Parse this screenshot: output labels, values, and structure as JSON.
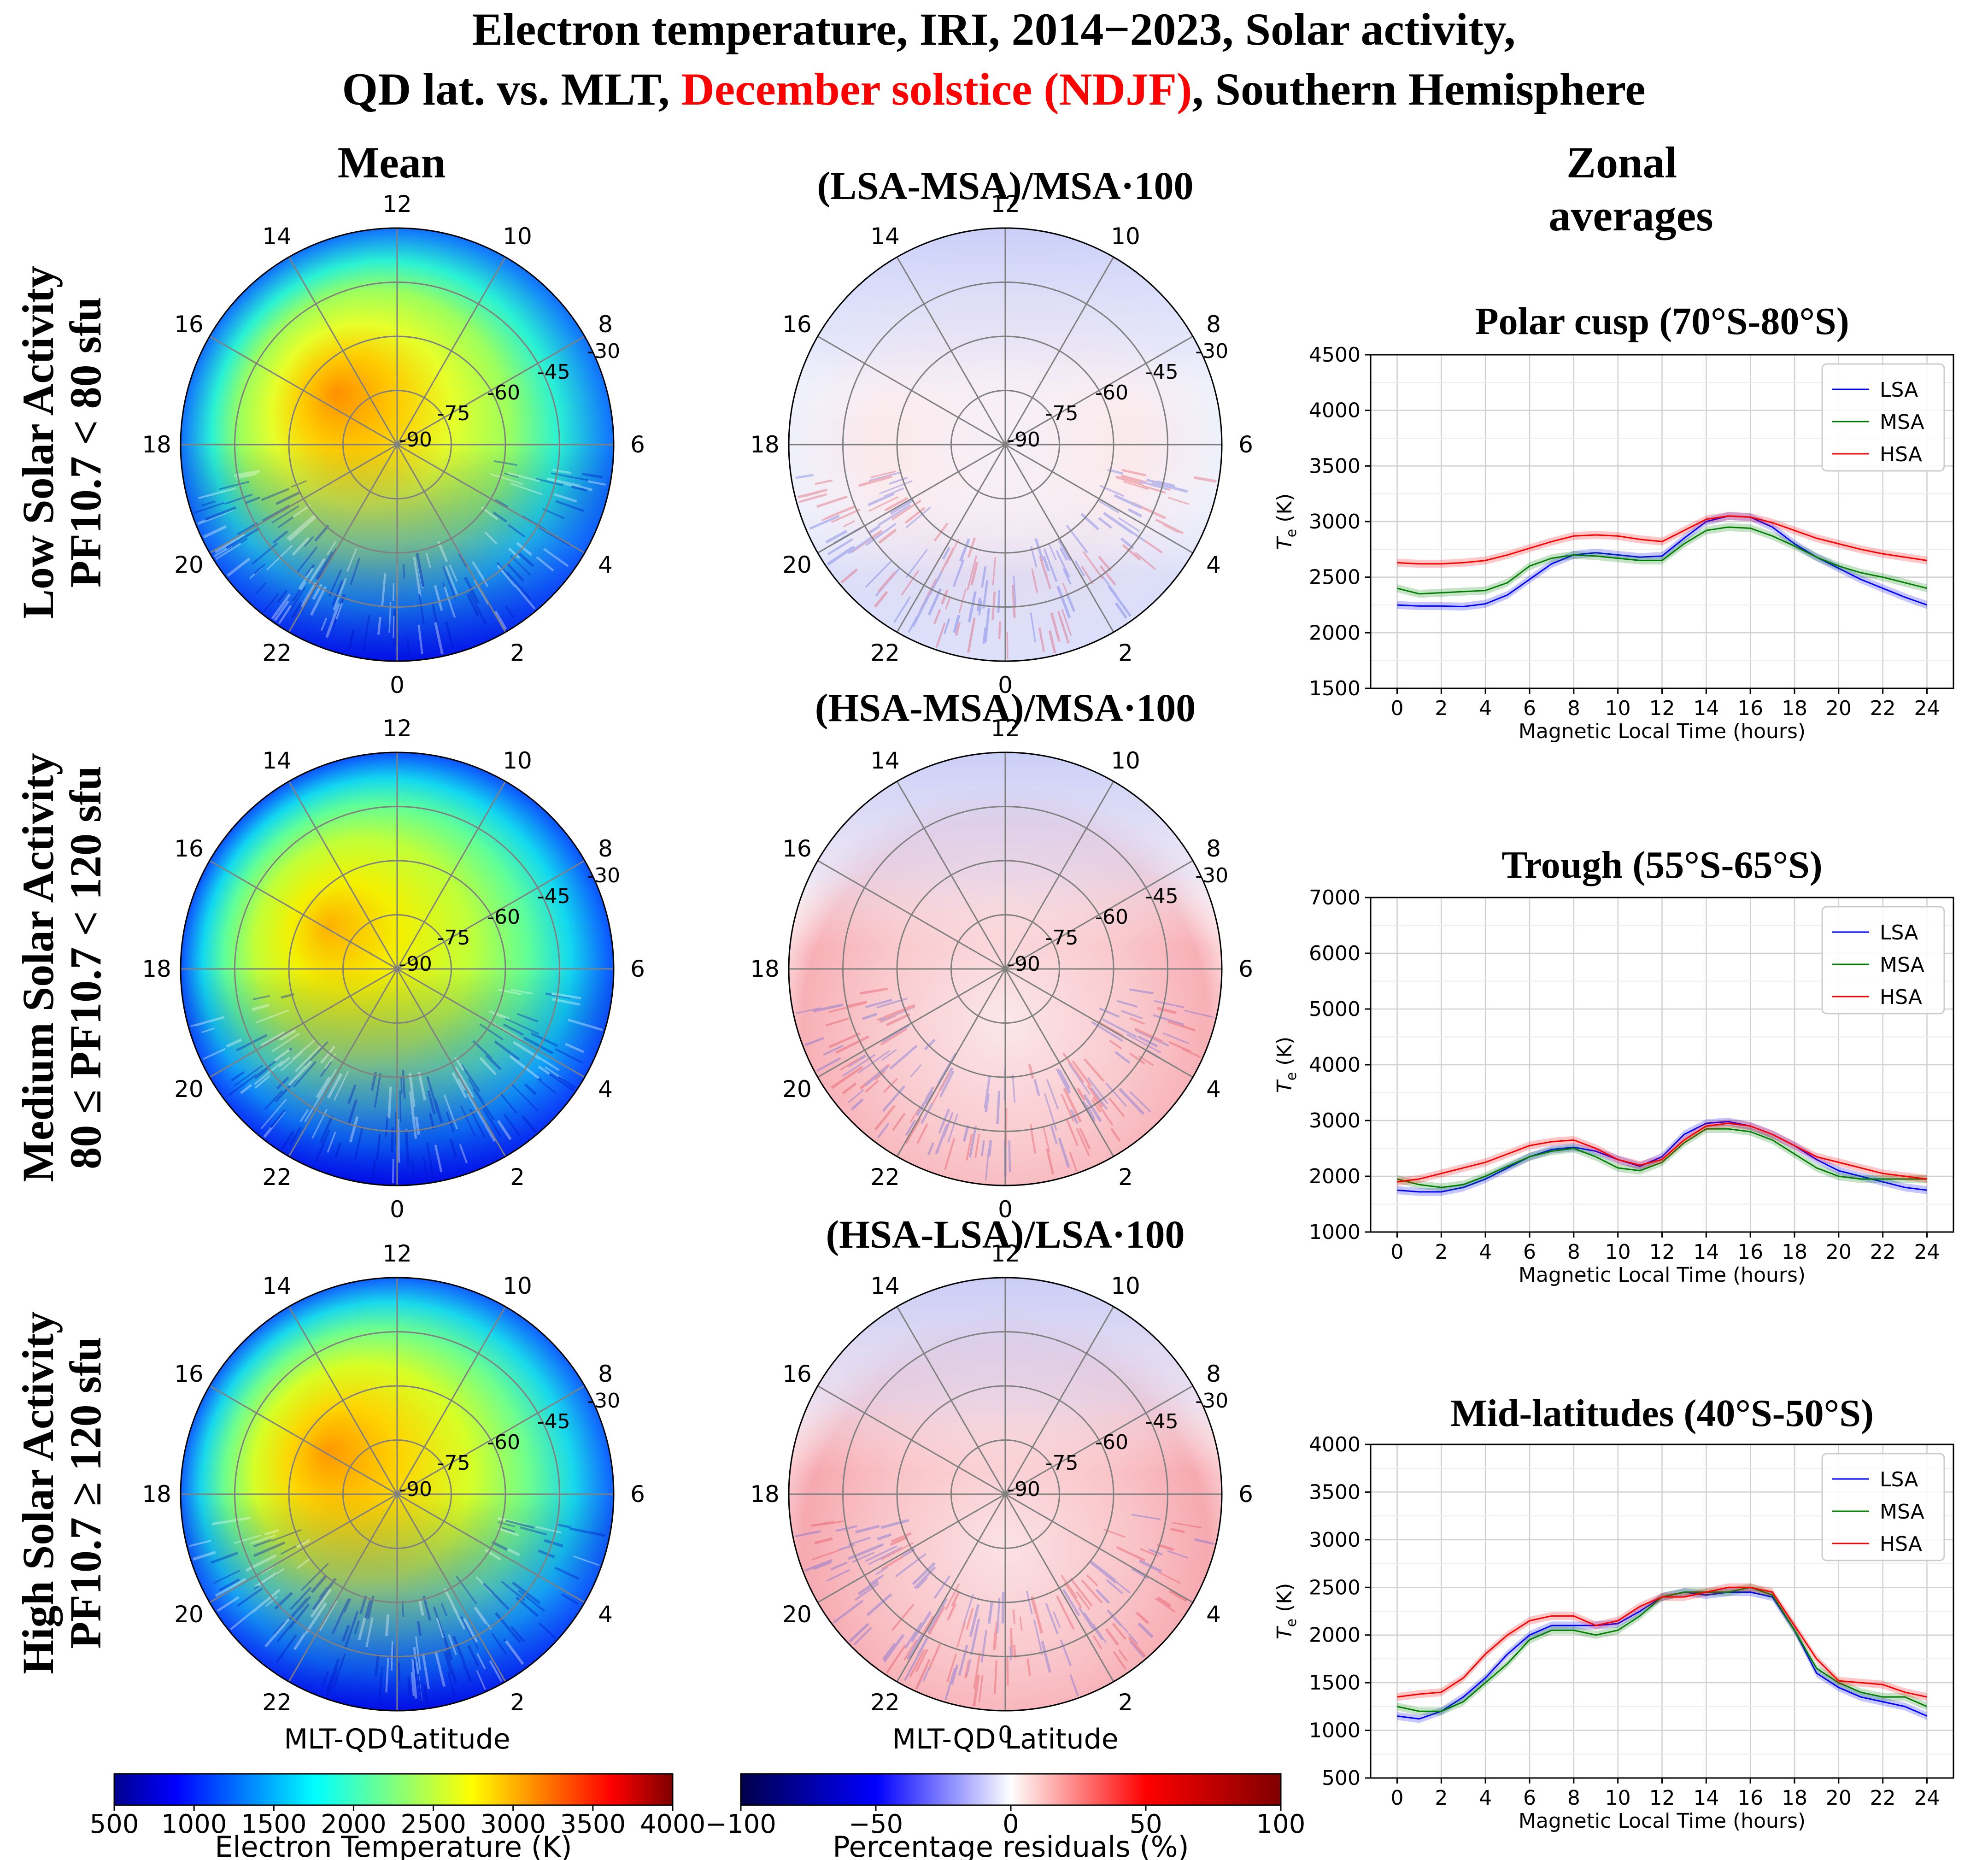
{
  "title": {
    "line1": "Electron temperature, IRI, 2014−2023, Solar activity,",
    "line2_a": "QD lat. vs. MLT, ",
    "line2_b": "December solstice (NDJF)",
    "line2_c": ", Southern Hemisphere",
    "highlight_color": "#ff0000"
  },
  "column_headers": {
    "mean": "Mean",
    "diff1": "(LSA-MSA)/MSA·100",
    "diff2": "(HSA-MSA)/MSA·100",
    "diff3": "(HSA-LSA)/LSA·100",
    "zonal_1": "Zonal",
    "zonal_2": "averages"
  },
  "rows": [
    {
      "line1": "Low Solar Activity",
      "line2": "PF10.7 < 80 sfu"
    },
    {
      "line1": "Medium Solar Activity",
      "line2": "80 ≤ PF10.7 < 120 sfu"
    },
    {
      "line1": "High Solar Activity",
      "line2": "PF10.7 ≥ 120 sfu"
    }
  ],
  "polar": {
    "mlt_labels": [
      "12",
      "10",
      "8",
      "6",
      "4",
      "2",
      "0",
      "22",
      "20",
      "18",
      "16",
      "14"
    ],
    "lat_labels": [
      "-90",
      "-75",
      "-60",
      "-45",
      "-30"
    ],
    "xlabel": "MLT-QD Latitude"
  },
  "colorbars": {
    "temperature": {
      "label": "Electron Temperature (K)",
      "ticks": [
        "500",
        "1000",
        "1500",
        "2000",
        "2500",
        "3000",
        "3500",
        "4000"
      ],
      "range": [
        500,
        4000
      ],
      "colormap": "jet"
    },
    "residuals": {
      "label": "Percentage residuals (%)",
      "ticks": [
        "−100",
        "−50",
        "0",
        "50",
        "100"
      ],
      "range": [
        -100,
        100
      ],
      "colormap": "seismic"
    }
  },
  "chart_data": [
    {
      "type": "line",
      "title": "Polar cusp (70°S-80°S)",
      "xlabel": "Magnetic Local Time (hours)",
      "ylabel": "Tₑ (K)",
      "ylabel_base": "T",
      "ylabel_sub": "e",
      "ylabel_unit": " (K)",
      "xlim": [
        -1.2,
        25.2
      ],
      "ylim": [
        1500,
        4500
      ],
      "xticks": [
        0,
        2,
        4,
        6,
        8,
        10,
        12,
        14,
        16,
        18,
        20,
        22,
        24
      ],
      "yticks": [
        1500,
        2000,
        2500,
        3000,
        3500,
        4000,
        4500
      ],
      "legend": "top-right",
      "x": [
        0,
        1,
        2,
        3,
        4,
        5,
        6,
        7,
        8,
        9,
        10,
        11,
        12,
        13,
        14,
        15,
        16,
        17,
        18,
        19,
        20,
        21,
        22,
        23,
        24
      ],
      "series": [
        {
          "name": "LSA",
          "color": "#0000ff",
          "values": [
            2250,
            2240,
            2240,
            2235,
            2260,
            2340,
            2480,
            2620,
            2700,
            2720,
            2700,
            2680,
            2690,
            2850,
            3000,
            3050,
            3040,
            2950,
            2800,
            2680,
            2580,
            2480,
            2400,
            2320,
            2250
          ]
        },
        {
          "name": "MSA",
          "color": "#008000",
          "values": [
            2400,
            2350,
            2360,
            2370,
            2380,
            2450,
            2600,
            2670,
            2700,
            2690,
            2670,
            2650,
            2650,
            2800,
            2920,
            2950,
            2940,
            2870,
            2780,
            2680,
            2600,
            2540,
            2500,
            2450,
            2400
          ]
        },
        {
          "name": "HSA",
          "color": "#ff0000",
          "values": [
            2630,
            2620,
            2620,
            2630,
            2650,
            2700,
            2760,
            2820,
            2870,
            2880,
            2870,
            2840,
            2820,
            2920,
            3020,
            3050,
            3040,
            2990,
            2920,
            2850,
            2800,
            2750,
            2710,
            2680,
            2650
          ]
        }
      ]
    },
    {
      "type": "line",
      "title": "Trough (55°S-65°S)",
      "xlabel": "Magnetic Local Time (hours)",
      "ylabel": "Tₑ (K)",
      "ylabel_base": "T",
      "ylabel_sub": "e",
      "ylabel_unit": " (K)",
      "xlim": [
        -1.2,
        25.2
      ],
      "ylim": [
        1000,
        7000
      ],
      "xticks": [
        0,
        2,
        4,
        6,
        8,
        10,
        12,
        14,
        16,
        18,
        20,
        22,
        24
      ],
      "yticks": [
        1000,
        2000,
        3000,
        4000,
        5000,
        6000,
        7000
      ],
      "legend": "top-right",
      "x": [
        0,
        1,
        2,
        3,
        4,
        5,
        6,
        7,
        8,
        9,
        10,
        11,
        12,
        13,
        14,
        15,
        16,
        17,
        18,
        19,
        20,
        21,
        22,
        23,
        24
      ],
      "series": [
        {
          "name": "LSA",
          "color": "#0000ff",
          "values": [
            1750,
            1720,
            1720,
            1800,
            1950,
            2150,
            2350,
            2480,
            2520,
            2450,
            2300,
            2180,
            2350,
            2750,
            2950,
            2980,
            2900,
            2750,
            2550,
            2300,
            2100,
            2000,
            1900,
            1800,
            1750
          ]
        },
        {
          "name": "MSA",
          "color": "#008000",
          "values": [
            1950,
            1850,
            1800,
            1850,
            2000,
            2180,
            2350,
            2450,
            2500,
            2350,
            2150,
            2100,
            2250,
            2600,
            2850,
            2850,
            2800,
            2650,
            2400,
            2150,
            2000,
            1950,
            1950,
            1950,
            1950
          ]
        },
        {
          "name": "HSA",
          "color": "#ff0000",
          "values": [
            1900,
            1950,
            2050,
            2150,
            2250,
            2400,
            2550,
            2620,
            2650,
            2500,
            2300,
            2200,
            2300,
            2650,
            2900,
            2950,
            2900,
            2750,
            2550,
            2350,
            2250,
            2150,
            2050,
            2000,
            1950
          ]
        }
      ]
    },
    {
      "type": "line",
      "title": "Mid-latitudes (40°S-50°S)",
      "xlabel": "Magnetic Local Time (hours)",
      "ylabel": "Tₑ (K)",
      "ylabel_base": "T",
      "ylabel_sub": "e",
      "ylabel_unit": " (K)",
      "xlim": [
        -1.2,
        25.2
      ],
      "ylim": [
        500,
        4000
      ],
      "xticks": [
        0,
        2,
        4,
        6,
        8,
        10,
        12,
        14,
        16,
        18,
        20,
        22,
        24
      ],
      "yticks": [
        500,
        1000,
        1500,
        2000,
        2500,
        3000,
        3500,
        4000
      ],
      "legend": "top-right",
      "x": [
        0,
        1,
        2,
        3,
        4,
        5,
        6,
        7,
        8,
        9,
        10,
        11,
        12,
        13,
        14,
        15,
        16,
        17,
        18,
        19,
        20,
        21,
        22,
        23,
        24
      ],
      "series": [
        {
          "name": "LSA",
          "color": "#0000ff",
          "values": [
            1150,
            1120,
            1200,
            1350,
            1550,
            1800,
            2000,
            2100,
            2100,
            2100,
            2120,
            2250,
            2400,
            2450,
            2420,
            2450,
            2450,
            2400,
            2050,
            1600,
            1450,
            1350,
            1300,
            1250,
            1150
          ]
        },
        {
          "name": "MSA",
          "color": "#008000",
          "values": [
            1250,
            1200,
            1200,
            1300,
            1500,
            1700,
            1950,
            2050,
            2050,
            2000,
            2050,
            2200,
            2400,
            2450,
            2450,
            2450,
            2500,
            2420,
            2050,
            1650,
            1500,
            1400,
            1350,
            1350,
            1250
          ]
        },
        {
          "name": "HSA",
          "color": "#ff0000",
          "values": [
            1350,
            1380,
            1400,
            1550,
            1800,
            2000,
            2150,
            2200,
            2200,
            2100,
            2150,
            2300,
            2400,
            2400,
            2450,
            2500,
            2500,
            2450,
            2100,
            1750,
            1520,
            1500,
            1480,
            1400,
            1350
          ]
        }
      ]
    }
  ]
}
